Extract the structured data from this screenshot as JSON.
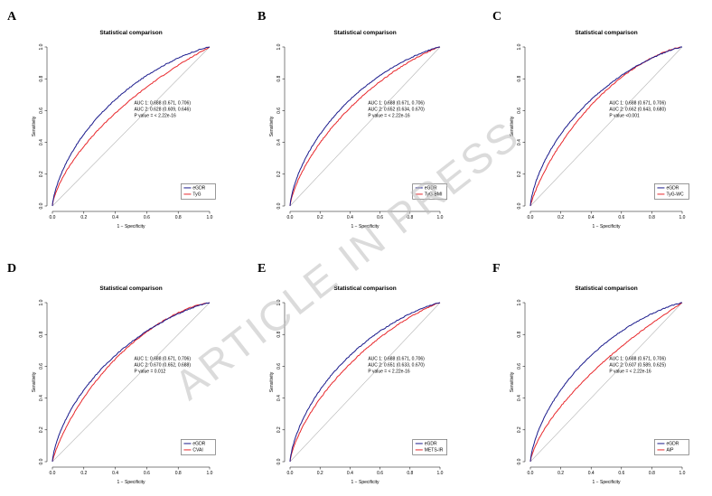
{
  "watermark": "ARTICLE IN PRESS",
  "colors": {
    "series1": "#1a1a8c",
    "series2": "#e8282c",
    "diagonal": "#b5b5b5"
  },
  "chart_data": [
    {
      "type": "line",
      "panel": "A",
      "title": "Statistical comparison",
      "xlabel": "1 − Specificity",
      "ylabel": "Sensitivity",
      "xlim": [
        0,
        1
      ],
      "ylim": [
        0,
        1
      ],
      "xticks": [
        "0.0",
        "0.2",
        "0.4",
        "0.6",
        "0.8",
        "1.0"
      ],
      "yticks": [
        "0.0",
        "0.2",
        "0.4",
        "0.6",
        "0.8",
        "1.0"
      ],
      "auc_lines": [
        "AUC 1: 0.688 (0.671, 0.706)",
        "AUC 2: 0.628 (0.609, 0.646)",
        "P value = < 2.22e-16"
      ],
      "series": [
        {
          "name": "eGDR",
          "auc": 0.688
        },
        {
          "name": "TyG",
          "auc": 0.628
        }
      ]
    },
    {
      "type": "line",
      "panel": "B",
      "title": "Statistical comparison",
      "xlabel": "1 − Specificity",
      "ylabel": "Sensitivity",
      "xlim": [
        0,
        1
      ],
      "ylim": [
        0,
        1
      ],
      "xticks": [
        "0.0",
        "0.2",
        "0.4",
        "0.6",
        "0.8",
        "1.0"
      ],
      "yticks": [
        "0.0",
        "0.2",
        "0.4",
        "0.6",
        "0.8",
        "1.0"
      ],
      "auc_lines": [
        "AUC 1: 0.688 (0.671, 0.706)",
        "AUC 2: 0.652 (0.634, 0.670)",
        "P value = < 2.22e-16"
      ],
      "series": [
        {
          "name": "eGDR",
          "auc": 0.688
        },
        {
          "name": "TyG-BMI",
          "auc": 0.652
        }
      ]
    },
    {
      "type": "line",
      "panel": "C",
      "title": "Statistical comparison",
      "xlabel": "1 − Specificity",
      "ylabel": "Sensitivity",
      "xlim": [
        0,
        1
      ],
      "ylim": [
        0,
        1
      ],
      "xticks": [
        "0.0",
        "0.2",
        "0.4",
        "0.6",
        "0.8",
        "1.0"
      ],
      "yticks": [
        "0.0",
        "0.2",
        "0.4",
        "0.6",
        "0.8",
        "1.0"
      ],
      "auc_lines": [
        "AUC 1: 0.688 (0.671, 0.706)",
        "AUC 2: 0.662 (0.643, 0.680)",
        "P value <0.001"
      ],
      "series": [
        {
          "name": "eGDR",
          "auc": 0.688
        },
        {
          "name": "TyG-WC",
          "auc": 0.662
        }
      ]
    },
    {
      "type": "line",
      "panel": "D",
      "title": "Statistical comparison",
      "xlabel": "1 − Specificity",
      "ylabel": "Sensitivity",
      "xlim": [
        0,
        1
      ],
      "ylim": [
        0,
        1
      ],
      "xticks": [
        "0.0",
        "0.2",
        "0.4",
        "0.6",
        "0.8",
        "1.0"
      ],
      "yticks": [
        "0.0",
        "0.2",
        "0.4",
        "0.6",
        "0.8",
        "1.0"
      ],
      "auc_lines": [
        "AUC 1: 0.688 (0.671, 0.706)",
        "AUC 2: 0.670 (0.652, 0.688)",
        "P value = 0.012"
      ],
      "series": [
        {
          "name": "eGDR",
          "auc": 0.688
        },
        {
          "name": "CVAI",
          "auc": 0.67
        }
      ]
    },
    {
      "type": "line",
      "panel": "E",
      "title": "Statistical comparison",
      "xlabel": "1 − Specificity",
      "ylabel": "Sensitivity",
      "xlim": [
        0,
        1
      ],
      "ylim": [
        0,
        1
      ],
      "xticks": [
        "0.0",
        "0.2",
        "0.4",
        "0.6",
        "0.8",
        "1.0"
      ],
      "yticks": [
        "0.0",
        "0.2",
        "0.4",
        "0.6",
        "0.8",
        "1.0"
      ],
      "auc_lines": [
        "AUC 1: 0.688 (0.671, 0.706)",
        "AUC 2: 0.651 (0.633, 0.670)",
        "P value = < 2.22e-16"
      ],
      "series": [
        {
          "name": "eGDR",
          "auc": 0.688
        },
        {
          "name": "METS-IR",
          "auc": 0.651
        }
      ]
    },
    {
      "type": "line",
      "panel": "F",
      "title": "Statistical comparison",
      "xlabel": "1 − Specificity",
      "ylabel": "Sensitivity",
      "xlim": [
        0,
        1
      ],
      "ylim": [
        0,
        1
      ],
      "xticks": [
        "0.0",
        "0.2",
        "0.4",
        "0.6",
        "0.8",
        "1.0"
      ],
      "yticks": [
        "0.0",
        "0.2",
        "0.4",
        "0.6",
        "0.8",
        "1.0"
      ],
      "auc_lines": [
        "AUC 1: 0.688 (0.671, 0.706)",
        "AUC 2: 0.607 (0.589, 0.625)",
        "P value = < 2.22e-16"
      ],
      "series": [
        {
          "name": "eGDR",
          "auc": 0.688
        },
        {
          "name": "AIP",
          "auc": 0.607
        }
      ]
    }
  ]
}
